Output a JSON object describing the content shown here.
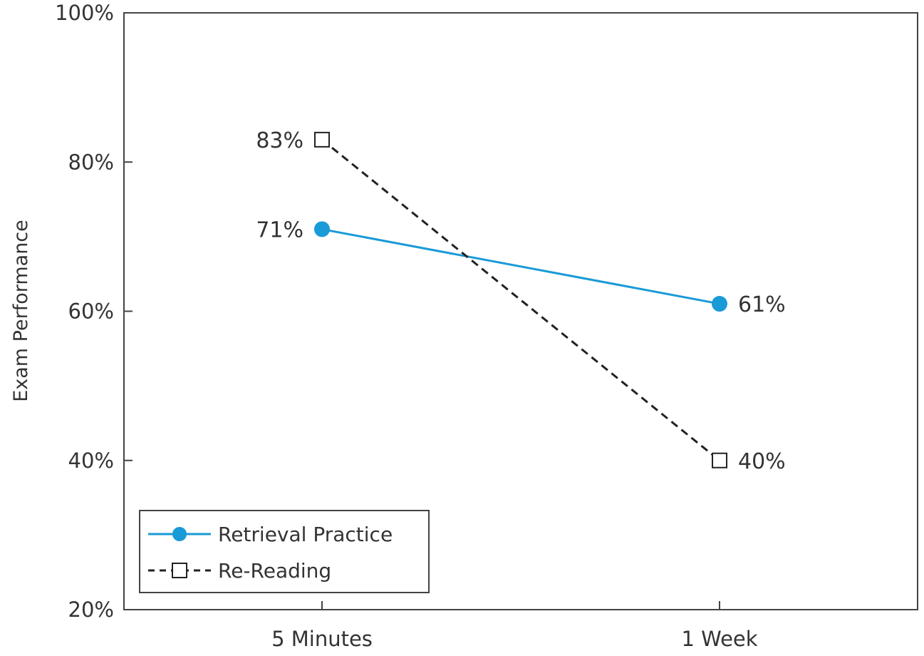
{
  "chart_data": {
    "type": "line",
    "title": "",
    "xlabel": "",
    "ylabel": "Exam Performance",
    "categories": [
      "5 Minutes",
      "1 Week"
    ],
    "ylim": [
      20,
      100
    ],
    "yticks": [
      20,
      40,
      60,
      80,
      100
    ],
    "ytick_labels": [
      "20%",
      "40%",
      "60%",
      "80%",
      "100%"
    ],
    "grid": false,
    "legend_position": "bottom-left",
    "series": [
      {
        "name": "Retrieval Practice",
        "values": [
          71,
          61
        ],
        "labels": [
          "71%",
          "61%"
        ],
        "color": "#1a9ad6",
        "line_style": "solid",
        "marker": "filled-circle"
      },
      {
        "name": "Re-Reading",
        "values": [
          83,
          40
        ],
        "labels": [
          "83%",
          "40%"
        ],
        "color": "#222222",
        "line_style": "dashed",
        "marker": "open-square"
      }
    ]
  }
}
